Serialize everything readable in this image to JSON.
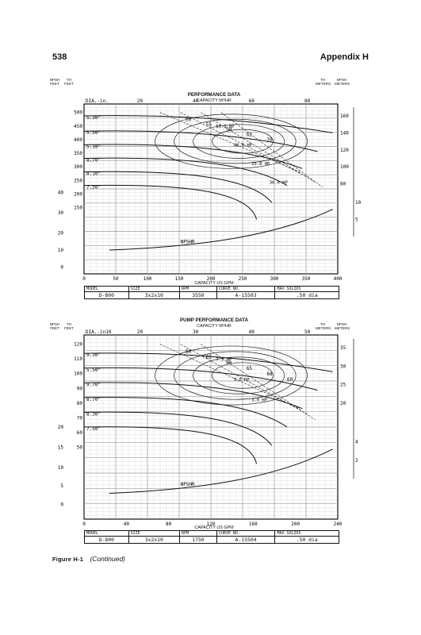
{
  "page": {
    "number": "538",
    "section": "Appendix H"
  },
  "caption": {
    "label": "Figure H-1",
    "note": "(Continued)"
  },
  "charts": [
    {
      "title": "PERFORMANCE DATA",
      "capacity_m3": "CAPACITY M³/HR",
      "capacity_gpm": "CAPACITY US GPM",
      "left_npsh": "NPSH FEET",
      "left_th": "TH FEET",
      "right_th": "TH METERS",
      "right_npsh": "NPSH METERS",
      "dia_label": "DIA.-in.",
      "top_ticks": [
        "20",
        "40",
        "60",
        "80"
      ],
      "bottom_ticks": [
        "0",
        "50",
        "100",
        "150",
        "200",
        "250",
        "300",
        "350",
        "400"
      ],
      "th_ticks": [
        "500",
        "450",
        "400",
        "350",
        "300",
        "250",
        "200",
        "150"
      ],
      "npsh_ticks": [
        "40",
        "30",
        "20",
        "10",
        "0"
      ],
      "right_th_ticks": [
        "160",
        "140",
        "120",
        "100",
        "80"
      ],
      "right_npsh_ticks": [
        "10",
        "5"
      ],
      "diameters": [
        "5.30\"",
        "5.50\"",
        "5.10\"",
        "8.70\"",
        "8.10\"",
        "7.50\""
      ],
      "efficiency": [
        "50",
        "55",
        "59",
        "62",
        "70"
      ],
      "hp": [
        "50.0 HP",
        "40.0 HP",
        "25.0 HP",
        "30.0 HP"
      ],
      "npshr": "NPSHR",
      "info": {
        "headers": [
          "MODEL",
          "SIZE",
          "RPM",
          "CURVE NO.",
          "MAX SOLIDS"
        ],
        "values": [
          "D-800",
          "3x2x10",
          "3550",
          "A-15503",
          ".50 dia"
        ]
      }
    },
    {
      "title": "PUMP PERFORMANCE DATA",
      "capacity_m3": "CAPACITY M³/HR",
      "capacity_gpm": "CAPACITY US GPM",
      "left_npsh": "NPSH FEET",
      "left_th": "TH FEET",
      "right_th": "TH METERS",
      "right_npsh": "NPSH METERS",
      "dia_label": "DIA.-in10",
      "top_ticks": [
        "20",
        "30",
        "40",
        "50"
      ],
      "bottom_ticks": [
        "0",
        "40",
        "80",
        "120",
        "160",
        "200",
        "240"
      ],
      "th_ticks": [
        "120",
        "110",
        "100",
        "90",
        "80",
        "70",
        "60",
        "50"
      ],
      "npsh_ticks": [
        "20",
        "15",
        "10",
        "5",
        "0"
      ],
      "right_th_ticks": [
        "35",
        "30",
        "25",
        "20"
      ],
      "right_npsh_ticks": [
        "4",
        "2"
      ],
      "diameters": [
        "9.30\"",
        "5.50\"",
        "9.70\"",
        "8.70\"",
        "8.30\"",
        "7.50\""
      ],
      "efficiency": [
        "50",
        "65",
        "60",
        "65",
        "68",
        "60"
      ],
      "hp": [
        "7.5 HP",
        "5.0 HP",
        "3.0 HP"
      ],
      "npshr": "NPSHR",
      "info": {
        "headers": [
          "MODEL",
          "SIZE",
          "RPM",
          "CURVE NO.",
          "MAX SOLIDS"
        ],
        "values": [
          "D-800",
          "3x2x10",
          "1750",
          "A-15504",
          ".50 dia"
        ]
      }
    }
  ]
}
